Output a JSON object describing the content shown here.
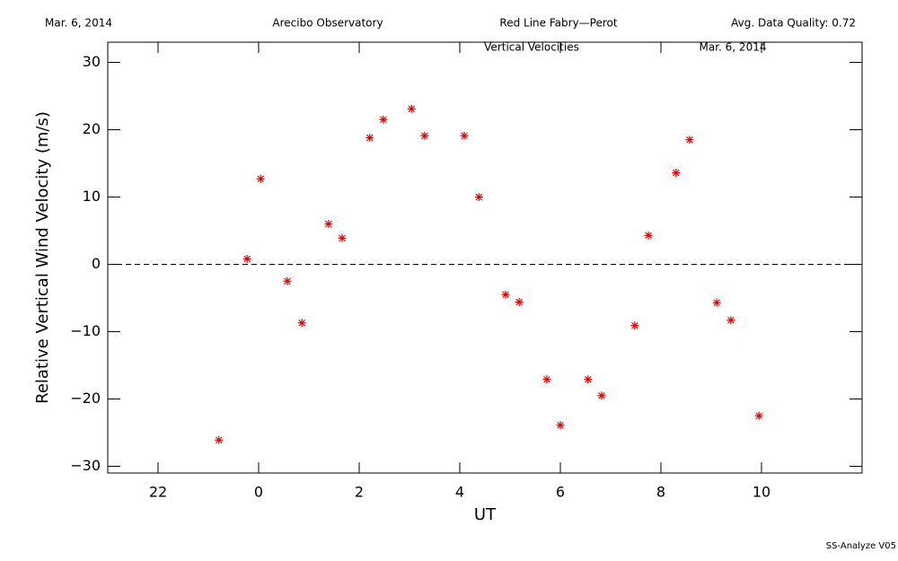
{
  "header": [
    "Mar. 6, 2014",
    "Arecibo Observatory",
    "Red Line Fabry—Perot",
    "Avg. Data Quality: 0.72"
  ],
  "footer": "SS-Analyze V05",
  "chart_data": {
    "type": "scatter",
    "annotations": [
      "Vertical Velocities",
      "Mar. 6, 2014"
    ],
    "xlabel": "UT",
    "ylabel": "Relative Vertical Wind Velocity (m/s)",
    "xlim": [
      -3,
      12
    ],
    "ylim": [
      -31,
      33
    ],
    "xticks": [
      {
        "value": -2,
        "label": "22"
      },
      0,
      2,
      4,
      6,
      8,
      10
    ],
    "yticks": [
      {
        "value": -30,
        "label": "−30"
      },
      {
        "value": -20,
        "label": "−20"
      },
      {
        "value": -10,
        "label": "−10"
      },
      0,
      10,
      20,
      30
    ],
    "hline": 0,
    "color": "#e00000",
    "x": [
      -0.79,
      -0.23,
      0.04,
      0.57,
      0.86,
      1.39,
      1.66,
      2.21,
      2.48,
      3.04,
      3.3,
      4.09,
      4.38,
      4.91,
      5.18,
      5.73,
      6.0,
      6.55,
      6.82,
      7.48,
      7.75,
      8.3,
      8.57,
      9.11,
      9.39,
      9.95
    ],
    "values": [
      -26.1,
      0.8,
      12.7,
      -2.5,
      -8.7,
      6.0,
      3.9,
      18.8,
      21.5,
      23.1,
      19.1,
      19.1,
      10.0,
      -4.5,
      -5.6,
      -17.1,
      -23.9,
      -17.1,
      -19.5,
      -9.1,
      4.3,
      13.6,
      18.5,
      -5.7,
      -8.3,
      -22.5
    ]
  }
}
